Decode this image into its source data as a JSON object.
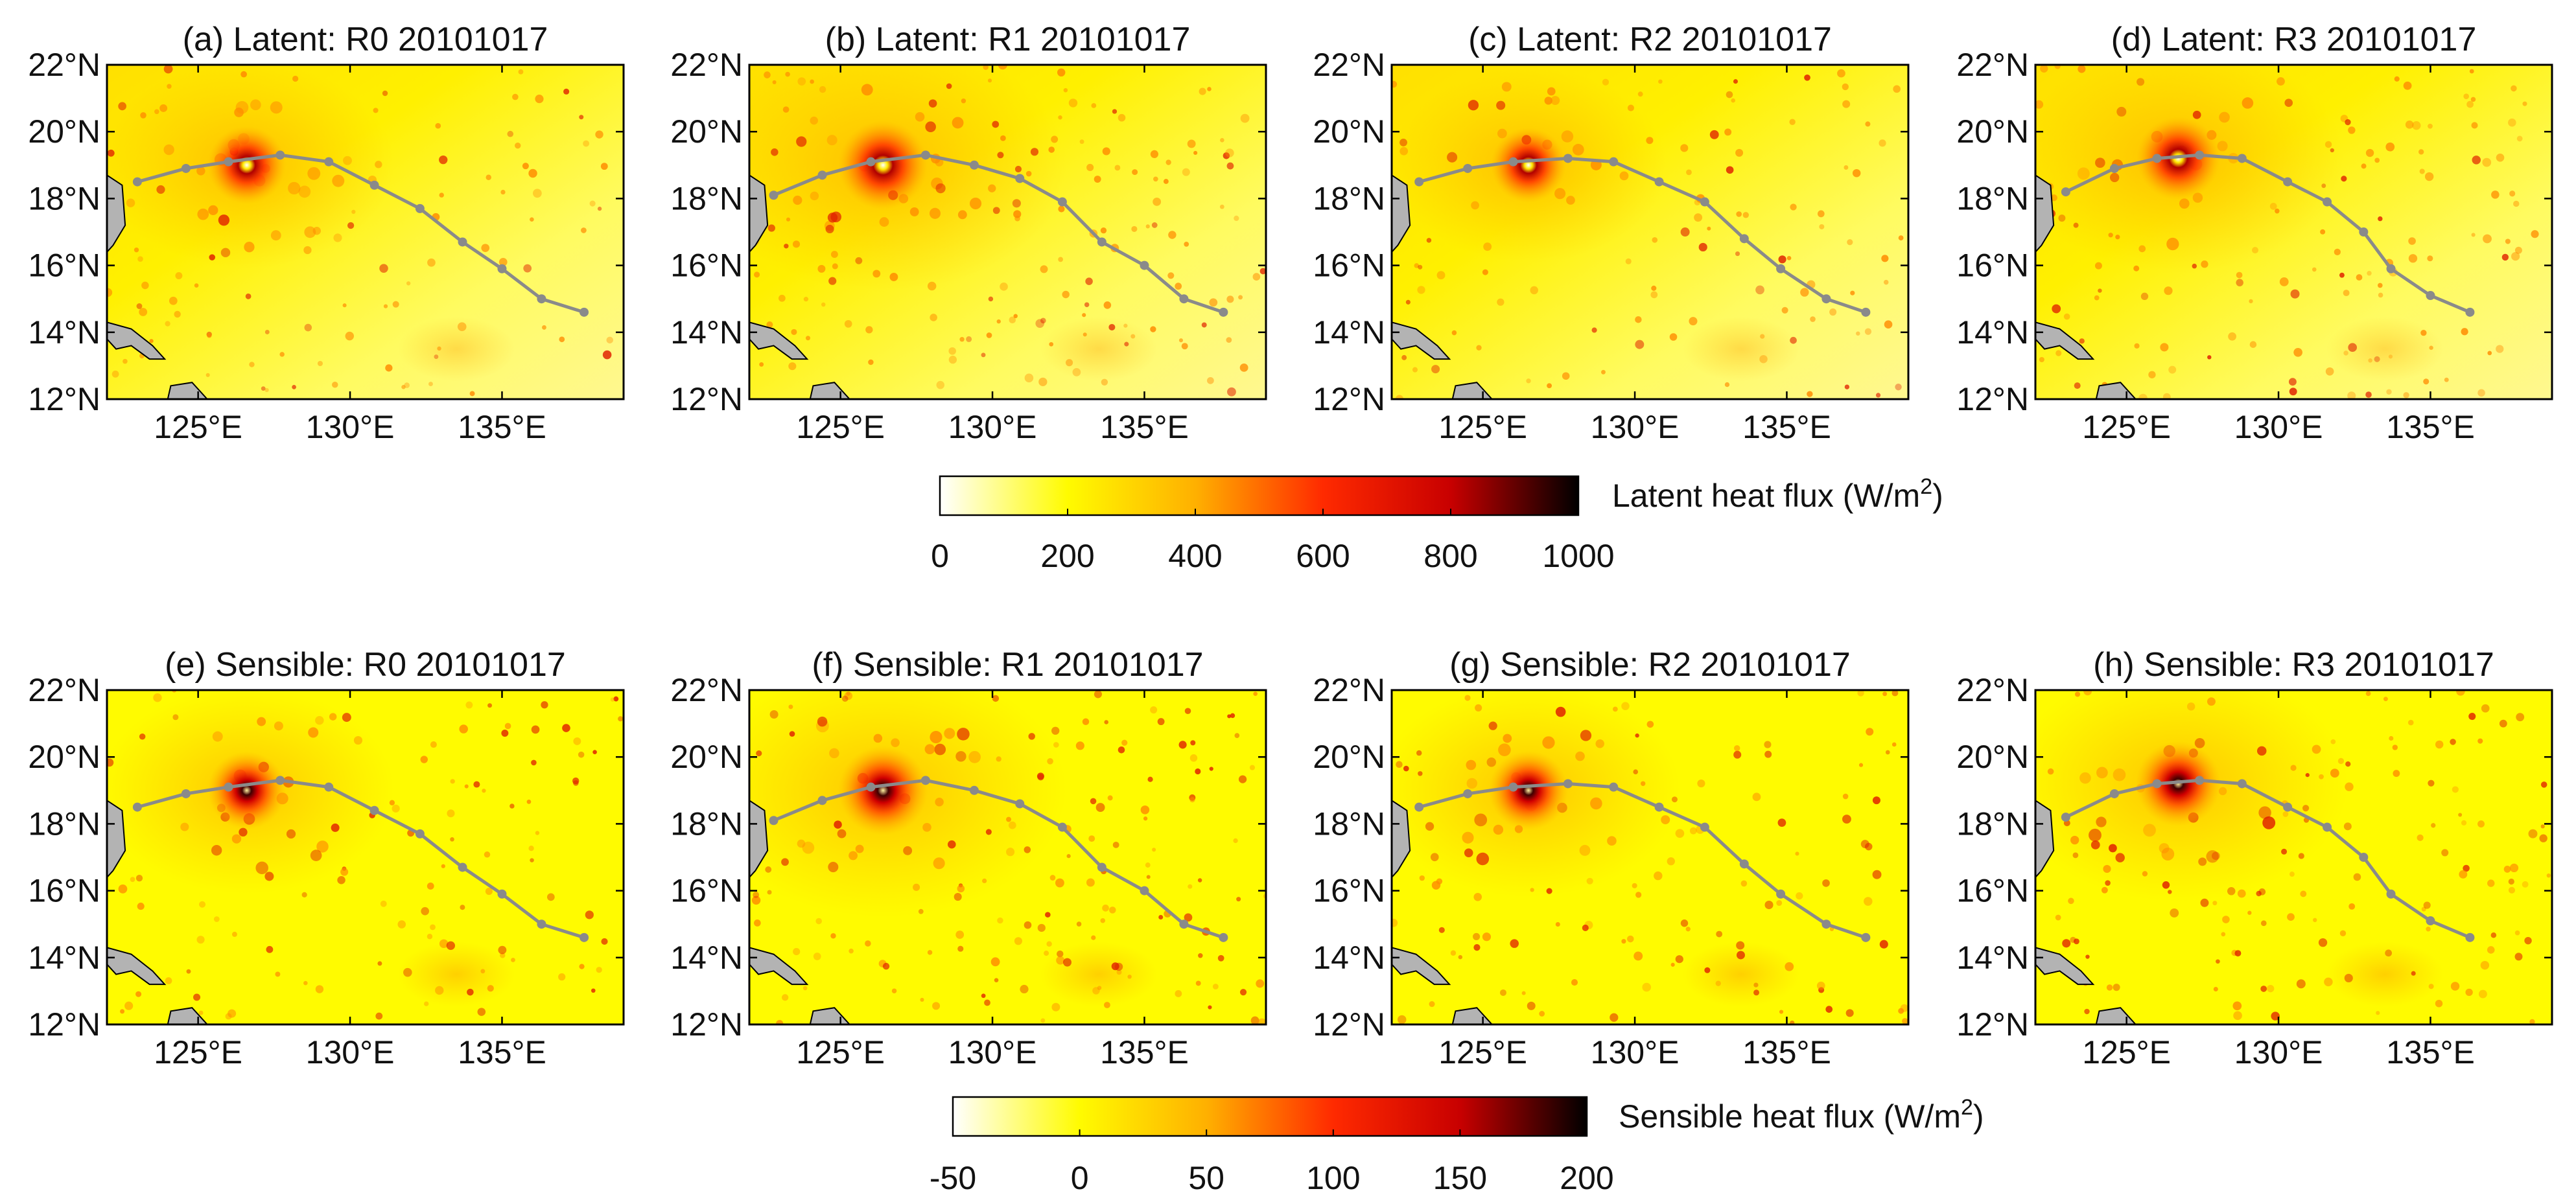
{
  "figure": {
    "colorbars": [
      {
        "id": "latent",
        "label_main": "Latent heat flux (W/m",
        "label_sup": "2",
        "label_end": ")",
        "ticks": [
          "0",
          "200",
          "400",
          "600",
          "800",
          "1000"
        ],
        "range": [
          0,
          1000
        ],
        "stops": [
          "#ffffff",
          "#fffb00",
          "#ffb000",
          "#ff2a00",
          "#c80000",
          "#000000"
        ]
      },
      {
        "id": "sensible",
        "label_main": "Sensible heat flux (W/m",
        "label_sup": "2",
        "label_end": ")",
        "ticks": [
          "-50",
          "0",
          "50",
          "100",
          "150",
          "200"
        ],
        "range": [
          -50,
          200
        ],
        "stops": [
          "#ffffff",
          "#fffb00",
          "#ffb000",
          "#ff2a00",
          "#c80000",
          "#000000"
        ]
      }
    ],
    "colors": {
      "track": "#8a8a8a",
      "land": "#b3b3b3",
      "field": "#fffb00",
      "hot": "#e02000"
    }
  },
  "chart_data": {
    "type": "heatmap",
    "map_extent": {
      "lon": [
        122,
        139
      ],
      "lat": [
        12,
        22
      ]
    },
    "x_ticks": [
      {
        "value": 125,
        "label": "125°E"
      },
      {
        "value": 130,
        "label": "130°E"
      },
      {
        "value": 135,
        "label": "135°E"
      }
    ],
    "y_ticks": [
      {
        "value": 22,
        "label": "22°N"
      },
      {
        "value": 20,
        "label": "20°N"
      },
      {
        "value": 18,
        "label": "18°N"
      },
      {
        "value": 16,
        "label": "16°N"
      },
      {
        "value": 14,
        "label": "14°N"
      },
      {
        "value": 12,
        "label": "12°N"
      }
    ],
    "panels": [
      {
        "title": "(a) Latent: R0 20101017",
        "variable": "latent",
        "center": [
          126.6,
          19.0
        ],
        "intensity": 0.55,
        "track": [
          [
            123.0,
            18.5
          ],
          [
            124.6,
            18.9
          ],
          [
            126.0,
            19.1
          ],
          [
            127.7,
            19.3
          ],
          [
            129.3,
            19.1
          ],
          [
            130.8,
            18.4
          ],
          [
            132.3,
            17.7
          ],
          [
            133.7,
            16.7
          ],
          [
            135.0,
            15.9
          ],
          [
            136.3,
            15.0
          ],
          [
            137.7,
            14.6
          ]
        ]
      },
      {
        "title": "(b) Latent: R1 20101017",
        "variable": "latent",
        "center": [
          126.4,
          19.0
        ],
        "intensity": 0.95,
        "track": [
          [
            122.8,
            18.1
          ],
          [
            124.4,
            18.7
          ],
          [
            126.0,
            19.1
          ],
          [
            127.8,
            19.3
          ],
          [
            129.4,
            19.0
          ],
          [
            130.9,
            18.6
          ],
          [
            132.3,
            17.9
          ],
          [
            133.6,
            16.7
          ],
          [
            135.0,
            16.0
          ],
          [
            136.3,
            15.0
          ],
          [
            137.6,
            14.6
          ]
        ]
      },
      {
        "title": "(c) Latent: R2 20101017",
        "variable": "latent",
        "center": [
          126.5,
          19.0
        ],
        "intensity": 0.45,
        "track": [
          [
            122.9,
            18.5
          ],
          [
            124.5,
            18.9
          ],
          [
            126.0,
            19.1
          ],
          [
            127.8,
            19.2
          ],
          [
            129.3,
            19.1
          ],
          [
            130.8,
            18.5
          ],
          [
            132.3,
            17.9
          ],
          [
            133.6,
            16.8
          ],
          [
            134.8,
            15.9
          ],
          [
            136.3,
            15.0
          ],
          [
            137.6,
            14.6
          ]
        ]
      },
      {
        "title": "(d) Latent: R3 20101017",
        "variable": "latent",
        "center": [
          126.7,
          19.2
        ],
        "intensity": 0.75,
        "track": [
          [
            123.0,
            18.2
          ],
          [
            124.6,
            18.9
          ],
          [
            126.0,
            19.2
          ],
          [
            127.4,
            19.3
          ],
          [
            128.8,
            19.2
          ],
          [
            130.3,
            18.5
          ],
          [
            131.6,
            17.9
          ],
          [
            132.8,
            17.0
          ],
          [
            133.7,
            15.9
          ],
          [
            135.0,
            15.1
          ],
          [
            136.3,
            14.6
          ]
        ]
      },
      {
        "title": "(e) Sensible: R0 20101017",
        "variable": "sensible",
        "center": [
          126.6,
          19.0
        ],
        "intensity": 0.55,
        "track": [
          [
            123.0,
            18.5
          ],
          [
            124.6,
            18.9
          ],
          [
            126.0,
            19.1
          ],
          [
            127.7,
            19.3
          ],
          [
            129.3,
            19.1
          ],
          [
            130.8,
            18.4
          ],
          [
            132.3,
            17.7
          ],
          [
            133.7,
            16.7
          ],
          [
            135.0,
            15.9
          ],
          [
            136.3,
            15.0
          ],
          [
            137.7,
            14.6
          ]
        ]
      },
      {
        "title": "(f) Sensible: R1 20101017",
        "variable": "sensible",
        "center": [
          126.4,
          19.0
        ],
        "intensity": 0.95,
        "track": [
          [
            122.8,
            18.1
          ],
          [
            124.4,
            18.7
          ],
          [
            126.0,
            19.1
          ],
          [
            127.8,
            19.3
          ],
          [
            129.4,
            19.0
          ],
          [
            130.9,
            18.6
          ],
          [
            132.3,
            17.9
          ],
          [
            133.6,
            16.7
          ],
          [
            135.0,
            16.0
          ],
          [
            136.3,
            15.0
          ],
          [
            137.6,
            14.6
          ]
        ]
      },
      {
        "title": "(g) Sensible: R2 20101017",
        "variable": "sensible",
        "center": [
          126.5,
          19.0
        ],
        "intensity": 0.6,
        "track": [
          [
            122.9,
            18.5
          ],
          [
            124.5,
            18.9
          ],
          [
            126.0,
            19.1
          ],
          [
            127.8,
            19.2
          ],
          [
            129.3,
            19.1
          ],
          [
            130.8,
            18.5
          ],
          [
            132.3,
            17.9
          ],
          [
            133.6,
            16.8
          ],
          [
            134.8,
            15.9
          ],
          [
            136.3,
            15.0
          ],
          [
            137.6,
            14.6
          ]
        ]
      },
      {
        "title": "(h) Sensible: R3 20101017",
        "variable": "sensible",
        "center": [
          126.7,
          19.2
        ],
        "intensity": 0.8,
        "track": [
          [
            123.0,
            18.2
          ],
          [
            124.6,
            18.9
          ],
          [
            126.0,
            19.2
          ],
          [
            127.4,
            19.3
          ],
          [
            128.8,
            19.2
          ],
          [
            130.3,
            18.5
          ],
          [
            131.6,
            17.9
          ],
          [
            132.8,
            17.0
          ],
          [
            133.7,
            15.9
          ],
          [
            135.0,
            15.1
          ],
          [
            136.3,
            14.6
          ]
        ]
      }
    ]
  }
}
